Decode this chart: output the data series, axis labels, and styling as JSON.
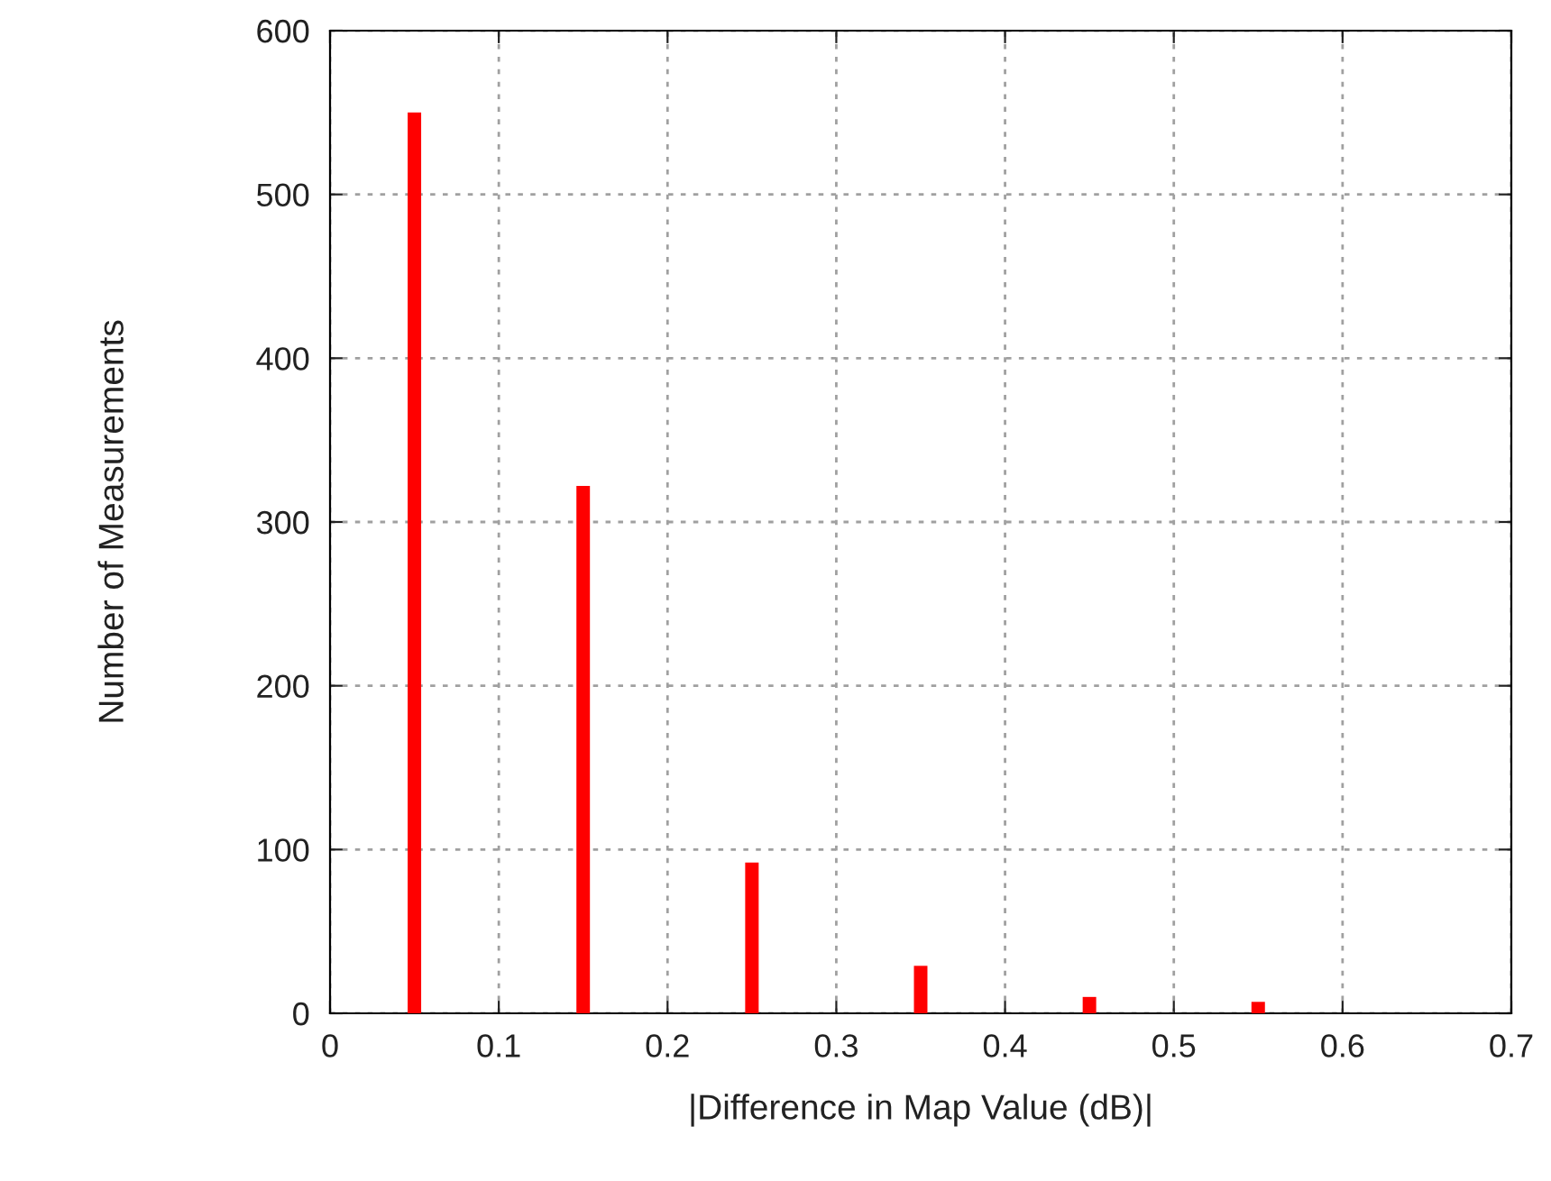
{
  "chart_data": {
    "type": "bar",
    "xlabel": "|Difference in Map Value (dB)|",
    "ylabel": "Number of Measurements",
    "x": [
      0.05,
      0.15,
      0.25,
      0.35,
      0.45,
      0.55
    ],
    "values": [
      550,
      322,
      92,
      29,
      10,
      7
    ],
    "color": "#ff0000",
    "xlim": [
      0,
      0.7
    ],
    "xticks": [
      0,
      0.1,
      0.2,
      0.3,
      0.4,
      0.5,
      0.6,
      0.7
    ],
    "ylim": [
      0,
      600
    ],
    "yticks": [
      0,
      100,
      200,
      300,
      400,
      500,
      600
    ],
    "grid": true
  }
}
